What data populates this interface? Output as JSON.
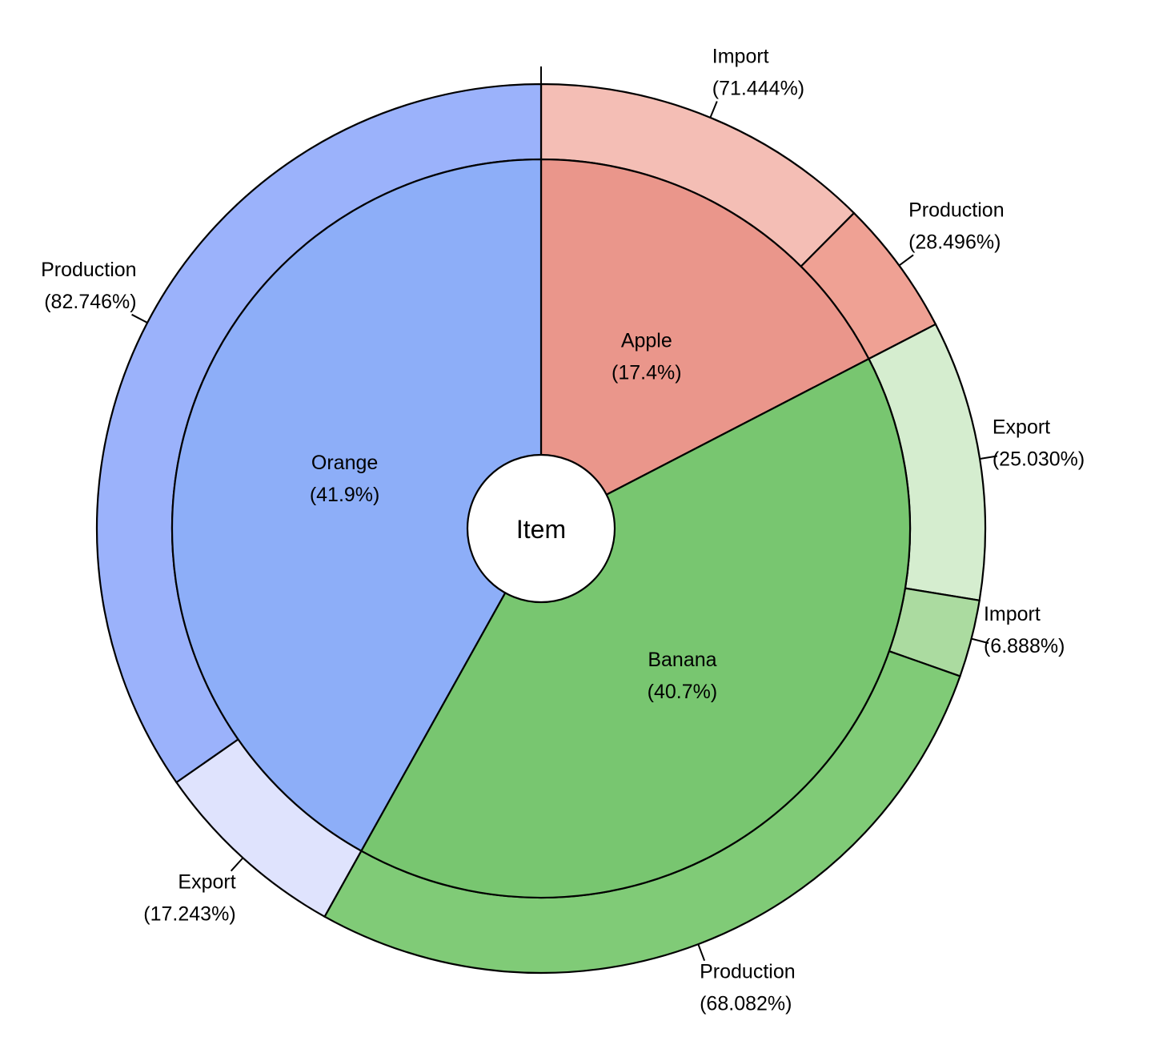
{
  "chart_data": {
    "type": "pie",
    "subtype": "sunburst",
    "center_label": "Item",
    "inner": [
      {
        "name": "Apple",
        "pct": 17.4,
        "pct_label": "(17.4%)",
        "color": "#ea968b"
      },
      {
        "name": "Banana",
        "pct": 40.7,
        "pct_label": "(40.7%)",
        "color": "#78c670"
      },
      {
        "name": "Orange",
        "pct": 41.9,
        "pct_label": "(41.9%)",
        "color": "#8daef8"
      }
    ],
    "outer": [
      {
        "parent": "Apple",
        "name": "Import",
        "pct": 71.444,
        "pct_label": "(71.444%)",
        "color": "#f4beb5"
      },
      {
        "parent": "Apple",
        "name": "Production",
        "pct": 28.496,
        "pct_label": "(28.496%)",
        "color": "#efa194"
      },
      {
        "parent": "Banana",
        "name": "Export",
        "pct": 25.03,
        "pct_label": "(25.030%)",
        "color": "#d5edcf"
      },
      {
        "parent": "Banana",
        "name": "Import",
        "pct": 6.888,
        "pct_label": "(6.888%)",
        "color": "#abdba0"
      },
      {
        "parent": "Banana",
        "name": "Production",
        "pct": 68.082,
        "pct_label": "(68.082%)",
        "color": "#80cb77"
      },
      {
        "parent": "Orange",
        "name": "Export",
        "pct": 17.243,
        "pct_label": "(17.243%)",
        "color": "#dfe3fd"
      },
      {
        "parent": "Orange",
        "name": "Production",
        "pct": 82.746,
        "pct_label": "(82.746%)",
        "color": "#9bb2fb"
      }
    ]
  }
}
